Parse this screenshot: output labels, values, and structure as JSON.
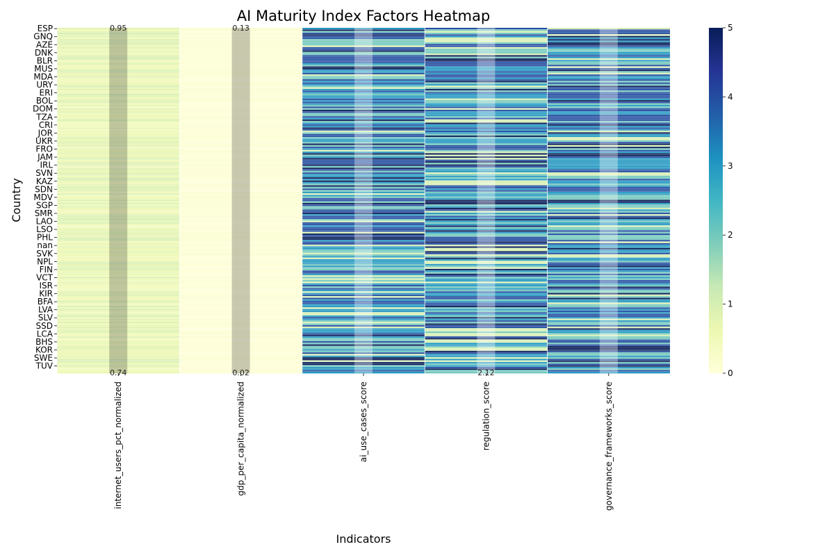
{
  "chart_data": {
    "type": "heatmap",
    "title": "AI Maturity Index Factors Heatmap",
    "xlabel": "Indicators",
    "ylabel": "Country",
    "columns": [
      "internet_users_pct_normalized",
      "gdp_per_capita_normalized",
      "ai_use_cases_score",
      "regulation_score",
      "governance_frameworks_score"
    ],
    "y_tick_labels": [
      "ESP",
      "GNQ",
      "AZE",
      "DNK",
      "BLR",
      "MUS",
      "MDA",
      "URY",
      "ERI",
      "BOL",
      "DOM",
      "TZA",
      "CRI",
      "JOR",
      "UKR",
      "FRO",
      "JAM",
      "IRL",
      "SVN",
      "KAZ",
      "SDN",
      "MDV",
      "SGP",
      "SMR",
      "LAO",
      "LSO",
      "PHL",
      "nan",
      "SVK",
      "NPL",
      "FIN",
      "VCT",
      "ISR",
      "KIR",
      "BFA",
      "LVA",
      "SLV",
      "SSD",
      "LCA",
      "BHS",
      "KOR",
      "SWE",
      "TUV"
    ],
    "rows_per_tick": 5,
    "vmin": 0,
    "vmax": 5,
    "colorbar_ticks": [
      0,
      1,
      2,
      3,
      4,
      5
    ],
    "colormap": [
      "#ffffd9",
      "#edf8b1",
      "#c7e9b4",
      "#7fcdbb",
      "#41b6c4",
      "#1d91c0",
      "#225ea8",
      "#253494",
      "#081d58"
    ],
    "column_value_ranges": [
      [
        0.4,
        1.0
      ],
      [
        0.0,
        0.15
      ],
      [
        1,
        5
      ],
      [
        1,
        5
      ],
      [
        1,
        5
      ]
    ],
    "visible_annotations": {
      "first_row": [
        "0.95",
        "0.13"
      ],
      "last_row": [
        "0.74",
        "0.02",
        "",
        "2.12",
        ""
      ]
    },
    "grid": true,
    "cell_separators": "white"
  }
}
